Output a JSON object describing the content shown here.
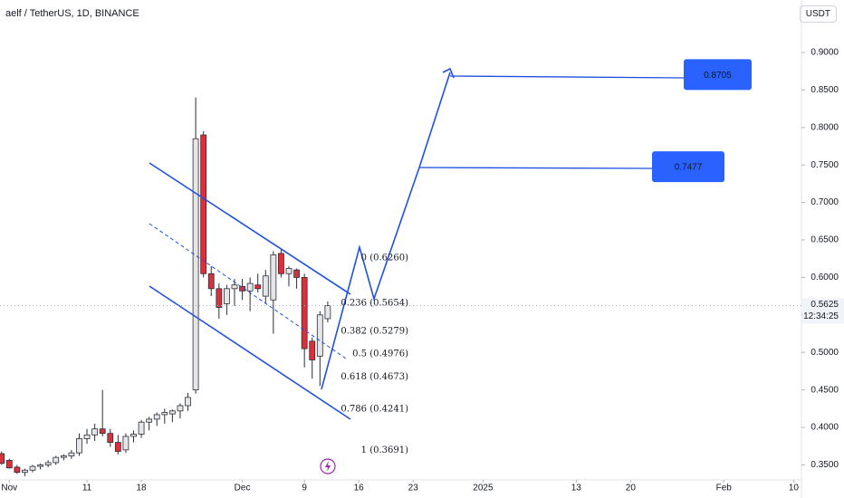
{
  "header": {
    "symbol": "aelf / TetherUS, 1D, BINANCE",
    "currency": "USDT"
  },
  "chart_data": {
    "type": "candlestick",
    "x": [
      -1,
      0,
      1,
      2,
      3,
      4,
      5,
      6,
      7,
      8,
      9,
      10,
      11,
      12,
      13,
      14,
      15,
      16,
      17,
      18,
      19,
      20,
      21,
      22,
      23,
      24,
      25,
      26,
      27,
      28,
      29,
      30,
      31,
      32,
      33,
      34,
      35,
      36,
      37,
      38,
      39,
      40,
      41
    ],
    "open": [
      0.365,
      0.356,
      0.347,
      0.34,
      0.343,
      0.348,
      0.35,
      0.353,
      0.36,
      0.362,
      0.366,
      0.385,
      0.39,
      0.398,
      0.392,
      0.38,
      0.37,
      0.388,
      0.391,
      0.407,
      0.411,
      0.417,
      0.418,
      0.422,
      0.429,
      0.45,
      0.79,
      0.605,
      0.585,
      0.565,
      0.585,
      0.588,
      0.582,
      0.59,
      0.575,
      0.57,
      0.632,
      0.605,
      0.61,
      0.6,
      0.515,
      0.495,
      0.545
    ],
    "high": [
      0.368,
      0.358,
      0.35,
      0.345,
      0.35,
      0.352,
      0.356,
      0.362,
      0.364,
      0.37,
      0.392,
      0.398,
      0.405,
      0.45,
      0.398,
      0.39,
      0.392,
      0.396,
      0.41,
      0.414,
      0.42,
      0.425,
      0.424,
      0.432,
      0.446,
      0.84,
      0.795,
      0.615,
      0.592,
      0.59,
      0.598,
      0.598,
      0.6,
      0.605,
      0.61,
      0.635,
      0.638,
      0.615,
      0.612,
      0.605,
      0.52,
      0.555,
      0.568
    ],
    "low": [
      0.35,
      0.345,
      0.338,
      0.335,
      0.34,
      0.344,
      0.347,
      0.35,
      0.356,
      0.358,
      0.362,
      0.378,
      0.382,
      0.388,
      0.374,
      0.364,
      0.366,
      0.38,
      0.386,
      0.396,
      0.402,
      0.405,
      0.407,
      0.412,
      0.422,
      0.445,
      0.6,
      0.575,
      0.545,
      0.55,
      0.562,
      0.57,
      0.555,
      0.58,
      0.565,
      0.525,
      0.6,
      0.588,
      0.585,
      0.48,
      0.465,
      0.455,
      0.54
    ],
    "close": [
      0.352,
      0.346,
      0.34,
      0.343,
      0.348,
      0.35,
      0.353,
      0.36,
      0.362,
      0.366,
      0.385,
      0.39,
      0.398,
      0.392,
      0.38,
      0.368,
      0.388,
      0.391,
      0.407,
      0.411,
      0.417,
      0.42,
      0.422,
      0.429,
      0.44,
      0.785,
      0.605,
      0.585,
      0.56,
      0.585,
      0.59,
      0.582,
      0.592,
      0.585,
      0.602,
      0.63,
      0.605,
      0.612,
      0.6,
      0.505,
      0.49,
      0.55,
      0.5625
    ],
    "up_color": "#e6e6e6",
    "down_color": "#d8303c",
    "xlim": [
      -1.2,
      102
    ],
    "xticks": [
      {
        "value": 0,
        "label": "Nov"
      },
      {
        "value": 10,
        "label": "11"
      },
      {
        "value": 17,
        "label": "18"
      },
      {
        "value": 30,
        "label": "Dec"
      },
      {
        "value": 38,
        "label": "9"
      },
      {
        "value": 45,
        "label": "16"
      },
      {
        "value": 52,
        "label": "23"
      },
      {
        "value": 61,
        "label": "2025"
      },
      {
        "value": 73,
        "label": "13"
      },
      {
        "value": 80,
        "label": "20"
      },
      {
        "value": 92,
        "label": "Feb"
      },
      {
        "value": 101,
        "label": "10"
      }
    ],
    "ylim": [
      0.33,
      0.97
    ],
    "yticks": [
      {
        "value": 0.35,
        "label": "0.3500"
      },
      {
        "value": 0.4,
        "label": "0.4000"
      },
      {
        "value": 0.45,
        "label": "0.4500"
      },
      {
        "value": 0.5,
        "label": "0.5000"
      },
      {
        "value": 0.55,
        "label": "0.5500"
      },
      {
        "value": 0.6,
        "label": "0.6000"
      },
      {
        "value": 0.65,
        "label": "0.6500"
      },
      {
        "value": 0.7,
        "label": "0.7000"
      },
      {
        "value": 0.75,
        "label": "0.7500"
      },
      {
        "value": 0.8,
        "label": "0.8000"
      },
      {
        "value": 0.85,
        "label": "0.8500"
      },
      {
        "value": 0.9,
        "label": "0.9000"
      }
    ],
    "grid": false,
    "fib_levels": [
      {
        "value": 0.626,
        "label": "0 (0.6260)"
      },
      {
        "value": 0.5654,
        "label": "0.236 (0.5654)"
      },
      {
        "value": 0.5279,
        "label": "0.382 (0.5279)"
      },
      {
        "value": 0.4976,
        "label": "0.5 (0.4976)"
      },
      {
        "value": 0.4673,
        "label": "0.618 (0.4673)"
      },
      {
        "value": 0.4241,
        "label": "0.786 (0.4241)"
      },
      {
        "value": 0.3691,
        "label": "1 (0.3691)"
      }
    ],
    "targets": [
      0.8705,
      0.7477
    ],
    "last_price": 0.5625,
    "countdown": "12:34:25"
  }
}
